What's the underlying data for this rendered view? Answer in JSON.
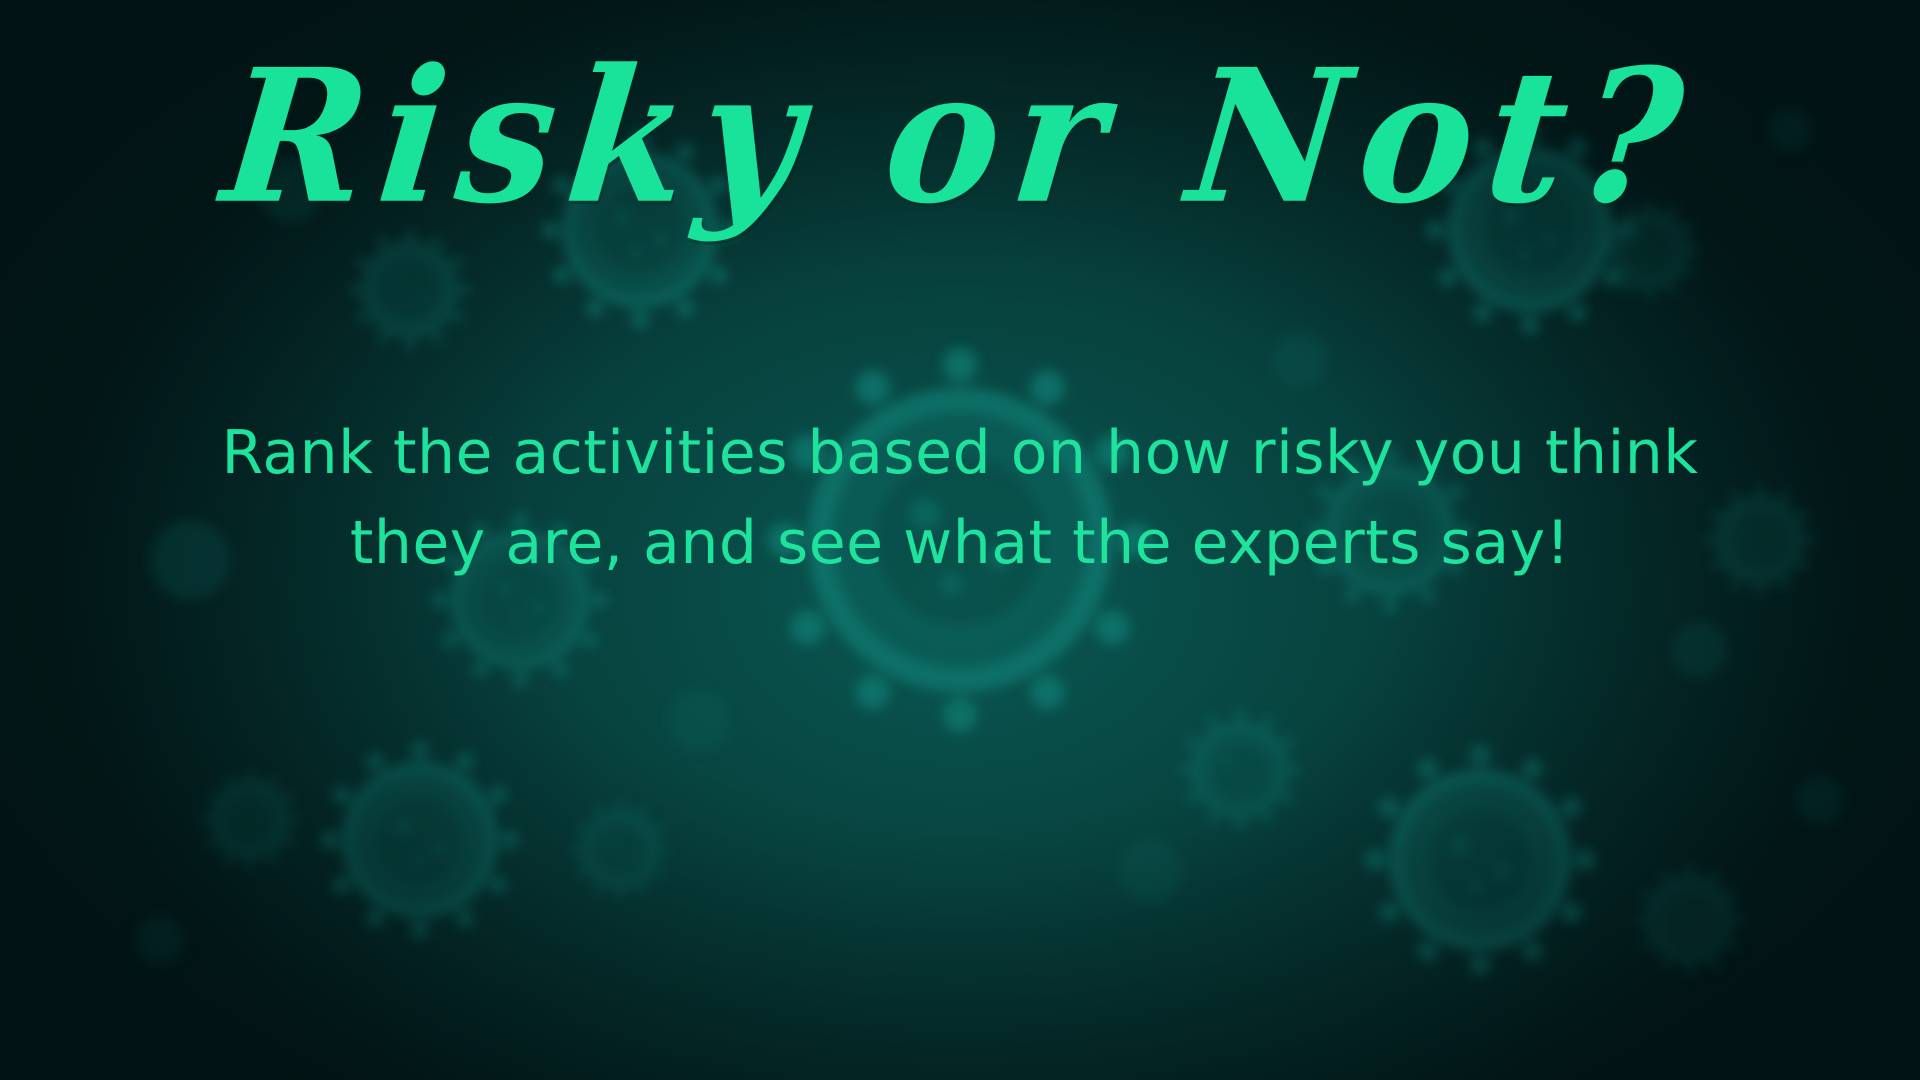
{
  "title": "Risky or Not?",
  "subtitle_line1": "Rank the activities based on how risky you think",
  "subtitle_line2": "they are, and see what the experts say!",
  "background": {
    "icon": "virus-icon",
    "base_color": "#05302e",
    "virus_color": "#0d6a63"
  },
  "colors": {
    "accent": "#19e39a"
  }
}
